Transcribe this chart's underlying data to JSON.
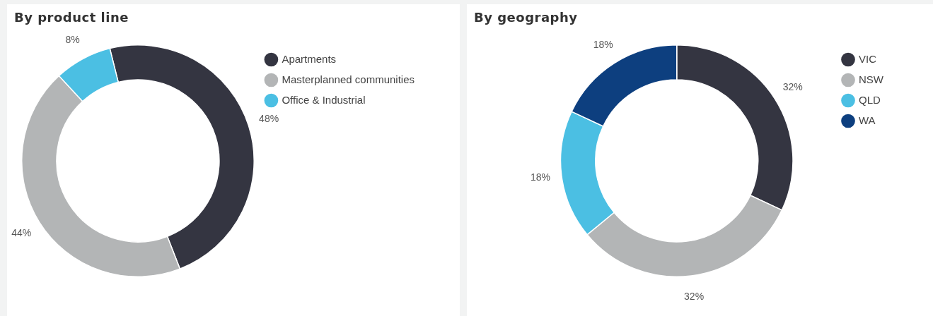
{
  "chart_data": [
    {
      "type": "donut",
      "title": "By product line",
      "categories": [
        "Apartments",
        "Masterplanned communities",
        "Office & Industrial"
      ],
      "values": [
        48,
        44,
        8
      ],
      "colors": [
        "#343541",
        "#b3b5b6",
        "#4bbfe3"
      ],
      "value_labels": [
        "48%",
        "44%",
        "8%"
      ],
      "legend": "right"
    },
    {
      "type": "donut",
      "title": "By geography",
      "categories": [
        "VIC",
        "NSW",
        "QLD",
        "WA"
      ],
      "values": [
        32,
        32,
        18,
        18
      ],
      "colors": [
        "#343541",
        "#b3b5b6",
        "#4bbfe3",
        "#0d3f7f"
      ],
      "value_labels": [
        "32%",
        "32%",
        "18%",
        "18%"
      ],
      "legend": "right"
    }
  ]
}
